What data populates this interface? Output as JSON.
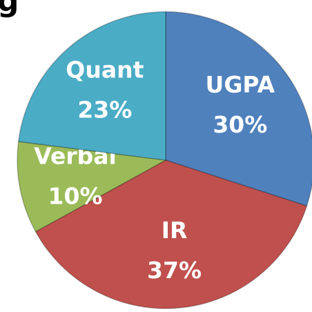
{
  "chart_data": {
    "type": "pie",
    "title": "g",
    "categories": [
      "UGPA",
      "IR",
      "Verbal",
      "Quant"
    ],
    "values": [
      30,
      37,
      10,
      23
    ],
    "value_labels": [
      "30%",
      "37%",
      "10%",
      "23%"
    ],
    "colors": [
      "#4f81bd",
      "#c0504d",
      "#9bbb59",
      "#4bacc6"
    ]
  }
}
